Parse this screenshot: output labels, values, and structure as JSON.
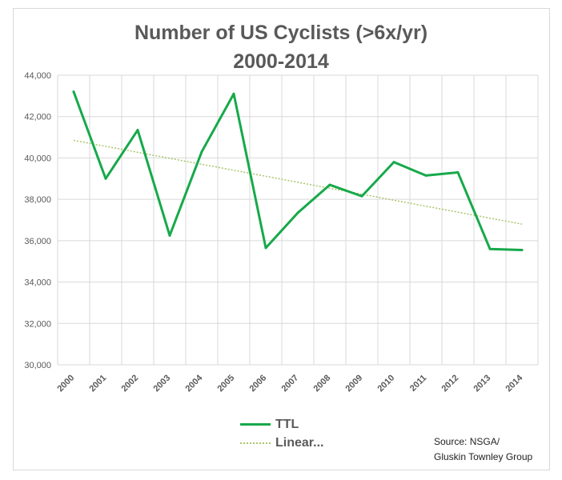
{
  "chart_data": {
    "type": "line",
    "title_line1": "Number of US Cyclists (>6x/yr)",
    "title_line2": "2000-2014",
    "categories": [
      "2000",
      "2001",
      "2002",
      "2003",
      "2004",
      "2005",
      "2006",
      "2007",
      "2008",
      "2009",
      "2010",
      "2011",
      "2012",
      "2013",
      "2014"
    ],
    "series": [
      {
        "name": "TTL",
        "color": "#16a94a",
        "values": [
          43200,
          39000,
          41350,
          36250,
          40300,
          43100,
          35650,
          37350,
          38700,
          38150,
          39800,
          39150,
          39300,
          35600,
          35550
        ]
      }
    ],
    "trendline": {
      "name": "Linear...",
      "type": "linear",
      "color": "#a9c46a",
      "start": 40850,
      "end": 36800
    },
    "y_ticks": [
      "30,000",
      "32,000",
      "34,000",
      "36,000",
      "38,000",
      "40,000",
      "42,000",
      "44,000"
    ],
    "ylim": [
      30000,
      44000
    ],
    "grid": "vertical and horizontal",
    "legend_position": "bottom-center",
    "source_line1": "Source: NSGA/",
    "source_line2": "Gluskin Townley Group"
  }
}
